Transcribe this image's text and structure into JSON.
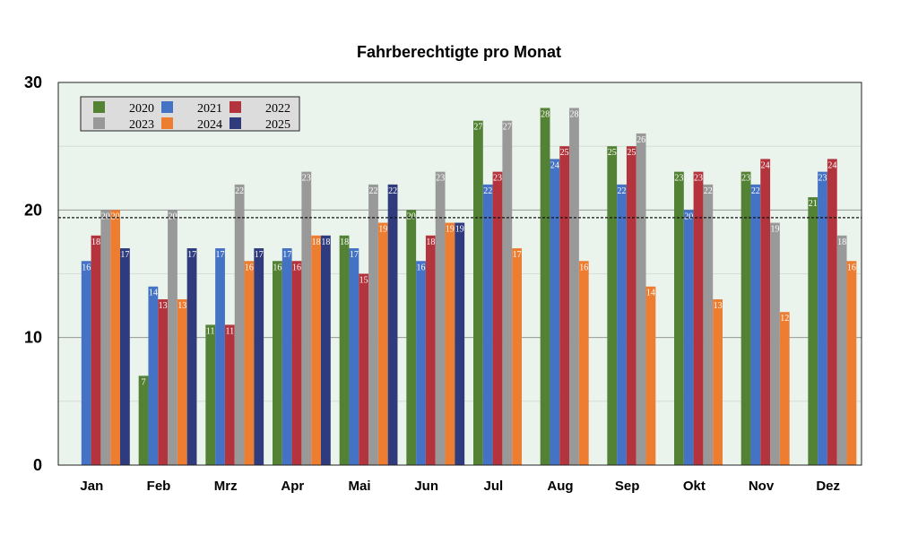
{
  "chart_data": {
    "type": "bar",
    "title": "Fahrberechtigte pro Monat",
    "categories": [
      "Jan",
      "Feb",
      "Mrz",
      "Apr",
      "Mai",
      "Jun",
      "Jul",
      "Aug",
      "Sep",
      "Okt",
      "Nov",
      "Dez"
    ],
    "series": [
      {
        "name": "2020",
        "color": "#548235",
        "values": [
          null,
          7,
          11,
          16,
          18,
          20,
          27,
          28,
          25,
          23,
          23,
          21
        ]
      },
      {
        "name": "2021",
        "color": "#4472C4",
        "values": [
          16,
          14,
          17,
          17,
          17,
          16,
          22,
          24,
          22,
          20,
          22,
          23
        ]
      },
      {
        "name": "2022",
        "color": "#B4343E",
        "values": [
          18,
          13,
          11,
          16,
          15,
          18,
          23,
          25,
          25,
          23,
          24,
          24
        ]
      },
      {
        "name": "2023",
        "color": "#999999",
        "values": [
          20,
          20,
          22,
          23,
          22,
          23,
          27,
          28,
          26,
          22,
          19,
          18
        ]
      },
      {
        "name": "2024",
        "color": "#ED7D31",
        "values": [
          20,
          13,
          16,
          18,
          19,
          19,
          17,
          16,
          14,
          13,
          12,
          16
        ]
      },
      {
        "name": "2025",
        "color": "#2F3B7D",
        "values": [
          17,
          17,
          17,
          18,
          22,
          19,
          null,
          null,
          null,
          null,
          null,
          null
        ]
      }
    ],
    "ylim": [
      0,
      30
    ],
    "yticks": [
      0,
      10,
      20,
      30
    ],
    "reference_line": 19.4,
    "grid": true,
    "legend": "top-left",
    "background": "#EAF4EC",
    "xlabel": "",
    "ylabel": ""
  }
}
